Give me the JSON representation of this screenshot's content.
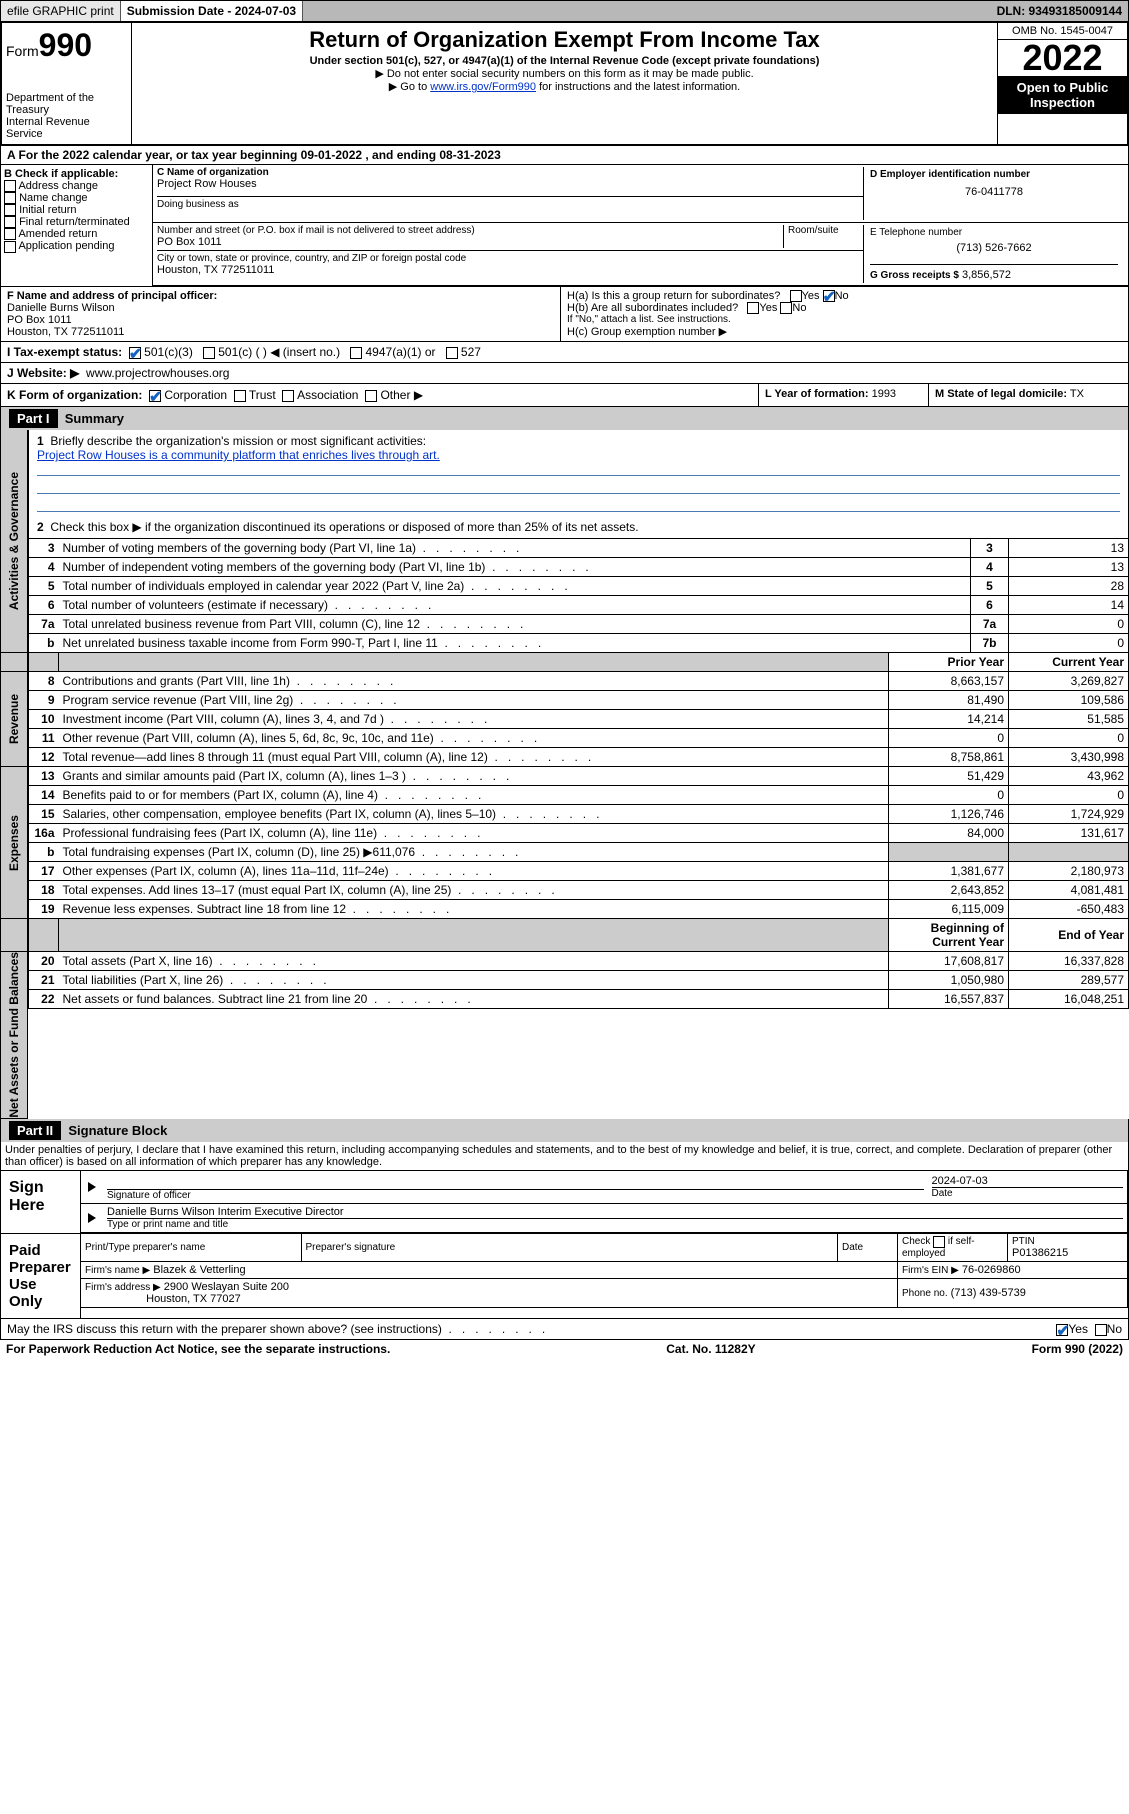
{
  "topbar": {
    "efile": "efile GRAPHIC print",
    "submit": "Submission Date - 2024-07-03",
    "dln": "DLN: 93493185009144"
  },
  "header": {
    "form_label": "Form",
    "form_num": "990",
    "dept": "Department of the Treasury",
    "irs": "Internal Revenue Service",
    "title": "Return of Organization Exempt From Income Tax",
    "sub": "Under section 501(c), 527, or 4947(a)(1) of the Internal Revenue Code (except private foundations)",
    "note1": "▶ Do not enter social security numbers on this form as it may be made public.",
    "note2a": "▶ Go to ",
    "note2_link": "www.irs.gov/Form990",
    "note2b": " for instructions and the latest information.",
    "omb": "OMB No. 1545-0047",
    "year": "2022",
    "open": "Open to Public Inspection"
  },
  "row_a": "A For the 2022 calendar year, or tax year beginning 09-01-2022    , and ending 08-31-2023",
  "col_b": {
    "title": "B Check if applicable:",
    "opts": [
      "Address change",
      "Name change",
      "Initial return",
      "Final return/terminated",
      "Amended return",
      "Application pending"
    ]
  },
  "col_c": {
    "name_lbl": "C Name of organization",
    "name": "Project Row Houses",
    "dba_lbl": "Doing business as",
    "addr_lbl": "Number and street (or P.O. box if mail is not delivered to street address)",
    "room_lbl": "Room/suite",
    "addr": "PO Box 1011",
    "city_lbl": "City or town, state or province, country, and ZIP or foreign postal code",
    "city": "Houston, TX  772511011"
  },
  "col_d": {
    "lbl": "D Employer identification number",
    "val": "76-0411778"
  },
  "col_e": {
    "lbl": "E Telephone number",
    "val": "(713) 526-7662"
  },
  "col_g": {
    "lbl": "G Gross receipts $",
    "val": "3,856,572"
  },
  "row_f": {
    "lbl": "F  Name and address of principal officer:",
    "name": "Danielle Burns Wilson",
    "addr1": "PO Box 1011",
    "addr2": "Houston, TX  772511011",
    "ha": "H(a)  Is this a group return for subordinates?",
    "ha_no": "No",
    "hb": "H(b)  Are all subordinates included?",
    "hb_note": "If \"No,\" attach a list. See instructions.",
    "hc": "H(c)  Group exemption number ▶"
  },
  "row_i": {
    "lbl": "I     Tax-exempt status:",
    "opts": [
      "501(c)(3)",
      "501(c) (  ) ◀ (insert no.)",
      "4947(a)(1) or",
      "527"
    ]
  },
  "row_j": {
    "lbl": "J    Website: ▶",
    "val": "www.projectrowhouses.org"
  },
  "row_k": {
    "lbl": "K Form of organization:",
    "opts": [
      "Corporation",
      "Trust",
      "Association",
      "Other ▶"
    ],
    "l_lbl": "L Year of formation:",
    "l_val": "1993",
    "m_lbl": "M State of legal domicile:",
    "m_val": "TX"
  },
  "part1": {
    "hdr": "Part I",
    "title": "Summary",
    "sec_gov": "Activities & Governance",
    "sec_rev": "Revenue",
    "sec_exp": "Expenses",
    "sec_net": "Net Assets or Fund Balances",
    "l1": "Briefly describe the organization's mission or most significant activities:",
    "l1_val": "Project Row Houses is a community platform that enriches lives through art.",
    "l2": "Check this box ▶      if the organization discontinued its operations or disposed of more than 25% of its net assets.",
    "rows_gov": [
      {
        "n": "3",
        "d": "Number of voting members of the governing body (Part VI, line 1a)",
        "b": "3",
        "v": "13"
      },
      {
        "n": "4",
        "d": "Number of independent voting members of the governing body (Part VI, line 1b)",
        "b": "4",
        "v": "13"
      },
      {
        "n": "5",
        "d": "Total number of individuals employed in calendar year 2022 (Part V, line 2a)",
        "b": "5",
        "v": "28"
      },
      {
        "n": "6",
        "d": "Total number of volunteers (estimate if necessary)",
        "b": "6",
        "v": "14"
      },
      {
        "n": "7a",
        "d": "Total unrelated business revenue from Part VIII, column (C), line 12",
        "b": "7a",
        "v": "0"
      },
      {
        "n": "b",
        "d": "Net unrelated business taxable income from Form 990-T, Part I, line 11",
        "b": "7b",
        "v": "0"
      }
    ],
    "hdr_prior": "Prior Year",
    "hdr_curr": "Current Year",
    "rows_rev": [
      {
        "n": "8",
        "d": "Contributions and grants (Part VIII, line 1h)",
        "p": "8,663,157",
        "c": "3,269,827"
      },
      {
        "n": "9",
        "d": "Program service revenue (Part VIII, line 2g)",
        "p": "81,490",
        "c": "109,586"
      },
      {
        "n": "10",
        "d": "Investment income (Part VIII, column (A), lines 3, 4, and 7d )",
        "p": "14,214",
        "c": "51,585"
      },
      {
        "n": "11",
        "d": "Other revenue (Part VIII, column (A), lines 5, 6d, 8c, 9c, 10c, and 11e)",
        "p": "0",
        "c": "0"
      },
      {
        "n": "12",
        "d": "Total revenue—add lines 8 through 11 (must equal Part VIII, column (A), line 12)",
        "p": "8,758,861",
        "c": "3,430,998"
      }
    ],
    "rows_exp": [
      {
        "n": "13",
        "d": "Grants and similar amounts paid (Part IX, column (A), lines 1–3 )",
        "p": "51,429",
        "c": "43,962"
      },
      {
        "n": "14",
        "d": "Benefits paid to or for members (Part IX, column (A), line 4)",
        "p": "0",
        "c": "0"
      },
      {
        "n": "15",
        "d": "Salaries, other compensation, employee benefits (Part IX, column (A), lines 5–10)",
        "p": "1,126,746",
        "c": "1,724,929"
      },
      {
        "n": "16a",
        "d": "Professional fundraising fees (Part IX, column (A), line 11e)",
        "p": "84,000",
        "c": "131,617"
      },
      {
        "n": "b",
        "d": "Total fundraising expenses (Part IX, column (D), line 25) ▶611,076",
        "p": "",
        "c": "",
        "shade": true
      },
      {
        "n": "17",
        "d": "Other expenses (Part IX, column (A), lines 11a–11d, 11f–24e)",
        "p": "1,381,677",
        "c": "2,180,973"
      },
      {
        "n": "18",
        "d": "Total expenses. Add lines 13–17 (must equal Part IX, column (A), line 25)",
        "p": "2,643,852",
        "c": "4,081,481"
      },
      {
        "n": "19",
        "d": "Revenue less expenses. Subtract line 18 from line 12",
        "p": "6,115,009",
        "c": "-650,483"
      }
    ],
    "hdr_beg": "Beginning of Current Year",
    "hdr_end": "End of Year",
    "rows_net": [
      {
        "n": "20",
        "d": "Total assets (Part X, line 16)",
        "p": "17,608,817",
        "c": "16,337,828"
      },
      {
        "n": "21",
        "d": "Total liabilities (Part X, line 26)",
        "p": "1,050,980",
        "c": "289,577"
      },
      {
        "n": "22",
        "d": "Net assets or fund balances. Subtract line 21 from line 20",
        "p": "16,557,837",
        "c": "16,048,251"
      }
    ]
  },
  "part2": {
    "hdr": "Part II",
    "title": "Signature Block",
    "penalties": "Under penalties of perjury, I declare that I have examined this return, including accompanying schedules and statements, and to the best of my knowledge and belief, it is true, correct, and complete. Declaration of preparer (other than officer) is based on all information of which preparer has any knowledge.",
    "sign_here": "Sign Here",
    "sig_officer": "Signature of officer",
    "sig_date_lbl": "Date",
    "sig_date": "2024-07-03",
    "sig_name": "Danielle Burns Wilson  Interim Executive Director",
    "sig_name_lbl": "Type or print name and title",
    "paid": "Paid Preparer Use Only",
    "prep_name_lbl": "Print/Type preparer's name",
    "prep_sig_lbl": "Preparer's signature",
    "prep_date_lbl": "Date",
    "prep_check": "Check      if self-employed",
    "ptin_lbl": "PTIN",
    "ptin": "P01386215",
    "firm_name_lbl": "Firm's name    ▶",
    "firm_name": "Blazek & Vetterling",
    "firm_ein_lbl": "Firm's EIN ▶",
    "firm_ein": "76-0269860",
    "firm_addr_lbl": "Firm's address ▶",
    "firm_addr1": "2900 Weslayan Suite 200",
    "firm_addr2": "Houston, TX  77027",
    "firm_phone_lbl": "Phone no.",
    "firm_phone": "(713) 439-5739",
    "discuss": "May the IRS discuss this return with the preparer shown above? (see instructions)",
    "yes": "Yes",
    "no": "No"
  },
  "footer": {
    "l": "For Paperwork Reduction Act Notice, see the separate instructions.",
    "m": "Cat. No. 11282Y",
    "r": "Form 990 (2022)"
  }
}
